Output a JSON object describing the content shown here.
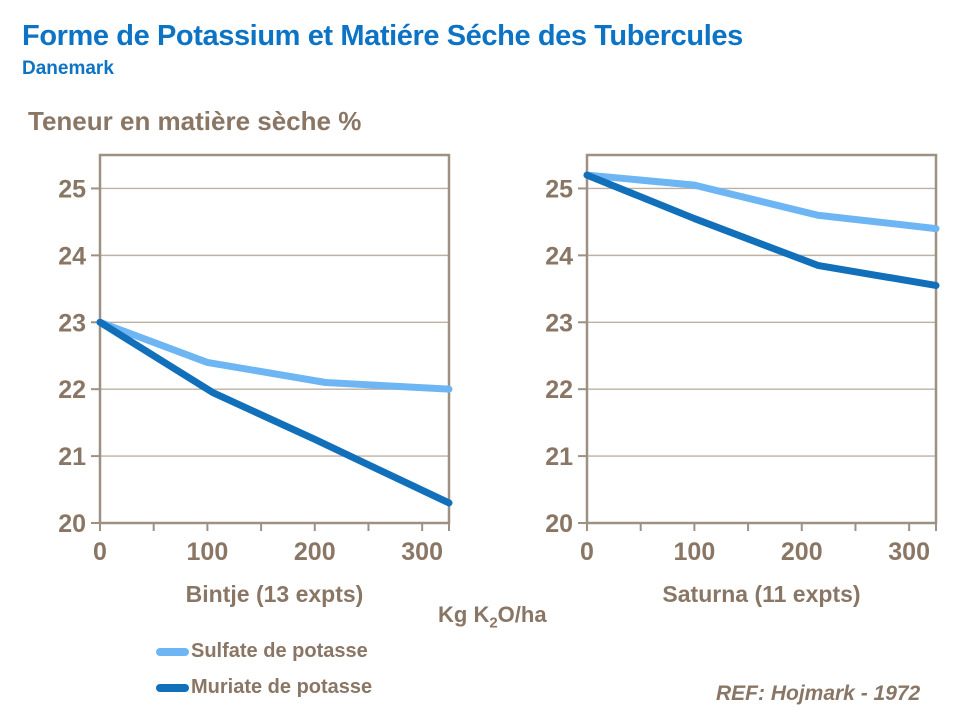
{
  "header": {
    "title": "Forme de Potassium et Matiére Séche des Tubercules",
    "subtitle": "Danemark"
  },
  "y_axis_title": "Teneur en matière sèche %",
  "x_axis_title": {
    "pre": "Kg K",
    "sub": "2",
    "post": "O/ha"
  },
  "ref_note": "REF: Hojmark - 1972",
  "colors": {
    "title_blue": "#0d73c4",
    "sulfate": "#6db6f3",
    "muriate": "#1270ba",
    "text_brown": "#8a7665",
    "frame": "#9e9183",
    "grid": "#bdb1a2"
  },
  "legend": [
    {
      "label": "Sulfate de potasse",
      "color_key": "sulfate"
    },
    {
      "label": "Muriate de potasse",
      "color_key": "muriate"
    }
  ],
  "chart_data": [
    {
      "type": "line",
      "title": "Bintje (13 expts)",
      "xlabel": "Kg K2O/ha",
      "ylabel": "Teneur en matière sèche %",
      "xlim": [
        0,
        325
      ],
      "ylim": [
        20,
        25.5
      ],
      "x_ticks": [
        0,
        100,
        200,
        300
      ],
      "x_minor_ticks": [
        50,
        150,
        250,
        325
      ],
      "y_ticks": [
        20,
        21,
        22,
        23,
        24,
        25
      ],
      "grid": "horizontal",
      "series": [
        {
          "name": "Sulfate de potasse",
          "color_key": "sulfate",
          "x": [
            0,
            100,
            210,
            325
          ],
          "y": [
            23.0,
            22.4,
            22.1,
            22.0
          ]
        },
        {
          "name": "Muriate de potasse",
          "color_key": "muriate",
          "x": [
            0,
            105,
            200,
            325
          ],
          "y": [
            23.0,
            21.95,
            21.25,
            20.3
          ]
        }
      ]
    },
    {
      "type": "line",
      "title": "Saturna (11 expts)",
      "xlabel": "Kg K2O/ha",
      "ylabel": "Teneur en matière sèche %",
      "xlim": [
        0,
        325
      ],
      "ylim": [
        20,
        25.5
      ],
      "x_ticks": [
        0,
        100,
        200,
        300
      ],
      "x_minor_ticks": [
        50,
        150,
        250,
        325
      ],
      "y_ticks": [
        20,
        21,
        22,
        23,
        24,
        25
      ],
      "grid": "horizontal",
      "series": [
        {
          "name": "Sulfate de potasse",
          "color_key": "sulfate",
          "x": [
            0,
            100,
            215,
            325
          ],
          "y": [
            25.2,
            25.05,
            24.6,
            24.4
          ]
        },
        {
          "name": "Muriate de potasse",
          "color_key": "muriate",
          "x": [
            0,
            100,
            215,
            325
          ],
          "y": [
            25.2,
            24.55,
            23.85,
            23.55
          ]
        }
      ]
    }
  ]
}
